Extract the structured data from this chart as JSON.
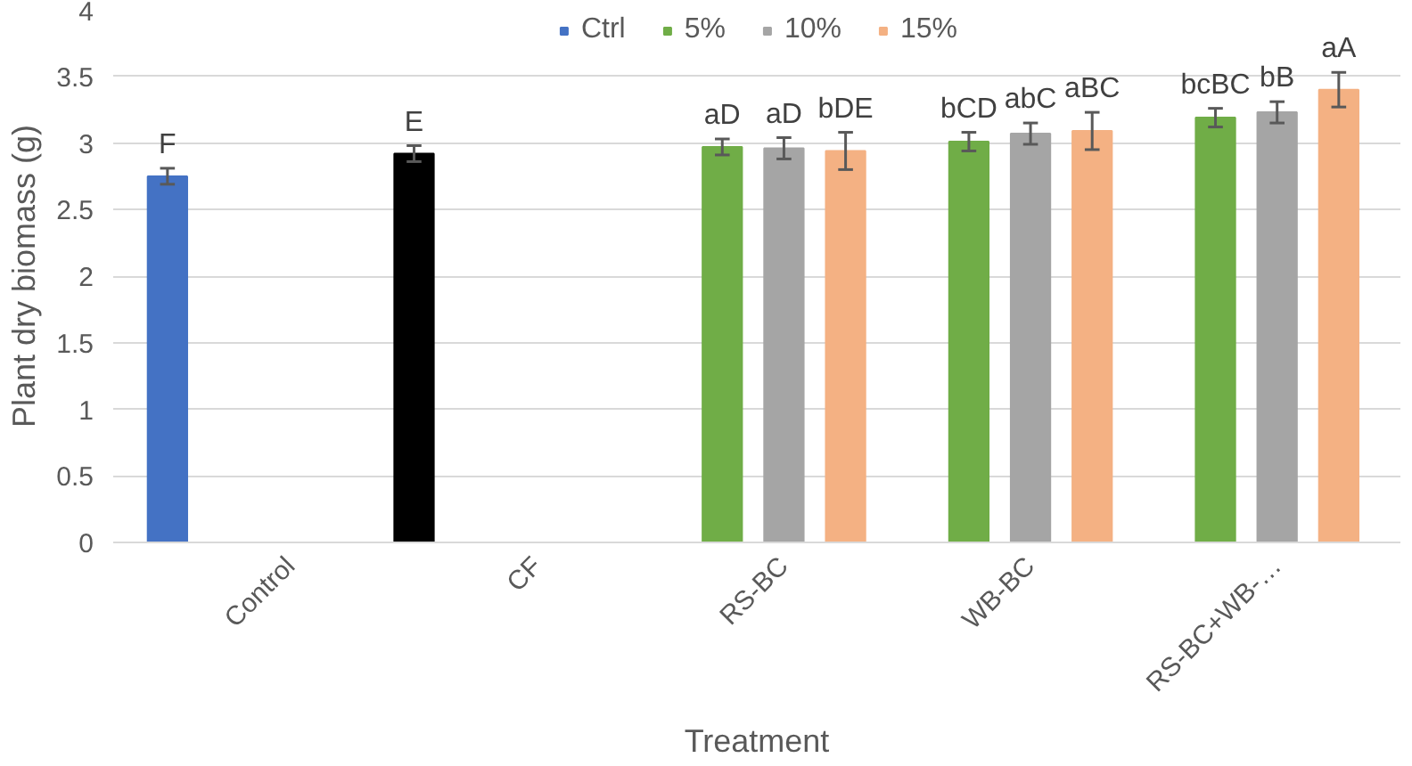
{
  "chart_data": {
    "type": "bar",
    "xlabel": "Treatment",
    "ylabel": "Plant dry biomass (g)",
    "categories": [
      "Control",
      "CF",
      "RS-BC",
      "WB-BC",
      "RS-BC+WB-…"
    ],
    "series": [
      {
        "name": "Ctrl",
        "color": "#4472c4",
        "colors": [
          "#4472c4",
          "#000000",
          null,
          null,
          null
        ],
        "values": [
          2.75,
          2.92,
          null,
          null,
          null
        ],
        "errors": [
          0.06,
          0.06,
          null,
          null,
          null
        ],
        "value_labels": [
          "F",
          "E",
          null,
          null,
          null
        ]
      },
      {
        "name": "5%",
        "color": "#70ad47",
        "values": [
          null,
          null,
          2.97,
          3.01,
          3.19
        ],
        "errors": [
          null,
          null,
          0.06,
          0.07,
          0.07
        ],
        "value_labels": [
          null,
          null,
          "aD",
          "bCD",
          "bcBC"
        ]
      },
      {
        "name": "10%",
        "color": "#a5a5a5",
        "values": [
          null,
          null,
          2.96,
          3.07,
          3.23
        ],
        "errors": [
          null,
          null,
          0.08,
          0.08,
          0.08
        ],
        "value_labels": [
          null,
          null,
          "aD",
          "abC",
          "bB"
        ]
      },
      {
        "name": "15%",
        "color": "#f4b183",
        "values": [
          null,
          null,
          2.94,
          3.09,
          3.4
        ],
        "errors": [
          null,
          null,
          0.14,
          0.14,
          0.13
        ],
        "value_labels": [
          null,
          null,
          "bDE",
          "aBC",
          "aA"
        ]
      }
    ],
    "ylim": [
      0,
      4
    ],
    "yticks": [
      0,
      0.5,
      1,
      1.5,
      2,
      2.5,
      3,
      3.5,
      4
    ],
    "grid": "y",
    "legend": "top"
  }
}
